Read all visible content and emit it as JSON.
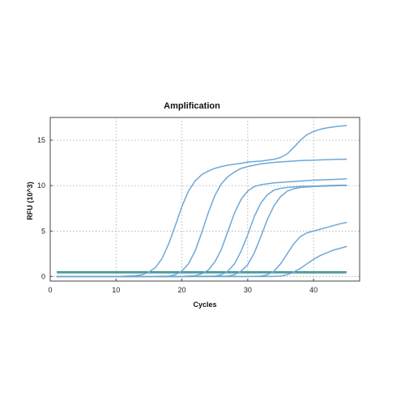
{
  "chart_data": {
    "type": "line",
    "title": "Amplification",
    "xlabel": "Cycles",
    "ylabel": "RFU (10^3)",
    "xlim": [
      0,
      47
    ],
    "ylim": [
      -0.5,
      17.5
    ],
    "xticks": [
      0,
      10,
      20,
      30,
      40
    ],
    "yticks": [
      0,
      5,
      10,
      15
    ],
    "grid": true,
    "curve_color": "#6fa8d6",
    "threshold_color": "#17856b",
    "threshold": 0.5,
    "threshold_x": [
      1,
      45
    ],
    "series": [
      {
        "x": [
          1,
          3,
          5,
          7,
          9,
          11,
          13,
          14,
          15,
          16,
          17,
          18,
          19,
          20,
          21,
          22,
          23,
          24,
          25,
          26,
          27,
          28,
          29,
          30,
          32,
          34,
          35,
          36,
          37,
          38,
          39,
          40,
          41,
          42,
          43,
          44,
          45
        ],
        "values": [
          0,
          0,
          0,
          0,
          0,
          0.02,
          0.1,
          0.2,
          0.5,
          1.0,
          2.0,
          3.6,
          5.6,
          7.7,
          9.4,
          10.5,
          11.2,
          11.6,
          11.9,
          12.1,
          12.25,
          12.35,
          12.45,
          12.6,
          12.7,
          12.9,
          13.1,
          13.5,
          14.2,
          15.0,
          15.6,
          15.95,
          16.2,
          16.35,
          16.45,
          16.55,
          16.6
        ]
      },
      {
        "x": [
          1,
          5,
          10,
          15,
          18,
          19,
          20,
          21,
          22,
          23,
          24,
          25,
          26,
          27,
          28,
          29,
          30,
          32,
          34,
          36,
          38,
          40,
          42,
          44,
          45
        ],
        "values": [
          0,
          0,
          0,
          0,
          0.05,
          0.2,
          0.6,
          1.4,
          2.8,
          4.8,
          7.0,
          8.9,
          10.2,
          11.0,
          11.5,
          11.9,
          12.1,
          12.4,
          12.55,
          12.65,
          12.75,
          12.8,
          12.85,
          12.9,
          12.9
        ]
      },
      {
        "x": [
          1,
          10,
          20,
          22,
          23,
          24,
          25,
          26,
          27,
          28,
          29,
          30,
          31,
          32,
          33,
          34,
          36,
          38,
          40,
          42,
          44,
          45
        ],
        "values": [
          0,
          0,
          0,
          0.1,
          0.3,
          0.7,
          1.6,
          3.0,
          5.0,
          7.0,
          8.5,
          9.4,
          9.9,
          10.1,
          10.2,
          10.3,
          10.4,
          10.5,
          10.6,
          10.65,
          10.7,
          10.75
        ]
      },
      {
        "x": [
          1,
          10,
          20,
          25,
          26,
          27,
          28,
          29,
          30,
          31,
          32,
          33,
          34,
          35,
          36,
          38,
          40,
          42,
          44,
          45
        ],
        "values": [
          0,
          0,
          0,
          0.05,
          0.2,
          0.6,
          1.4,
          2.8,
          4.6,
          6.6,
          8.1,
          9.0,
          9.5,
          9.7,
          9.8,
          9.9,
          9.95,
          10.0,
          10.05,
          10.05
        ]
      },
      {
        "x": [
          1,
          10,
          20,
          27,
          28,
          29,
          30,
          31,
          32,
          33,
          34,
          35,
          36,
          37,
          38,
          40,
          42,
          44,
          45
        ],
        "values": [
          0,
          0,
          0,
          0.05,
          0.2,
          0.6,
          1.3,
          2.6,
          4.4,
          6.3,
          7.8,
          8.8,
          9.4,
          9.65,
          9.8,
          9.9,
          9.95,
          10.0,
          10.0
        ]
      },
      {
        "x": [
          1,
          10,
          20,
          30,
          32,
          33,
          34,
          35,
          36,
          37,
          38,
          39,
          40,
          41,
          42,
          43,
          44,
          45
        ],
        "values": [
          0,
          0,
          0,
          0,
          0.05,
          0.2,
          0.6,
          1.4,
          2.5,
          3.6,
          4.4,
          4.8,
          5.0,
          5.2,
          5.4,
          5.6,
          5.8,
          5.95
        ]
      },
      {
        "x": [
          1,
          10,
          20,
          30,
          33,
          35,
          36,
          37,
          38,
          39,
          40,
          41,
          42,
          43,
          44,
          45
        ],
        "values": [
          0,
          0,
          0,
          0,
          0,
          0.05,
          0.2,
          0.5,
          0.9,
          1.4,
          1.9,
          2.3,
          2.6,
          2.9,
          3.1,
          3.3
        ]
      }
    ]
  }
}
